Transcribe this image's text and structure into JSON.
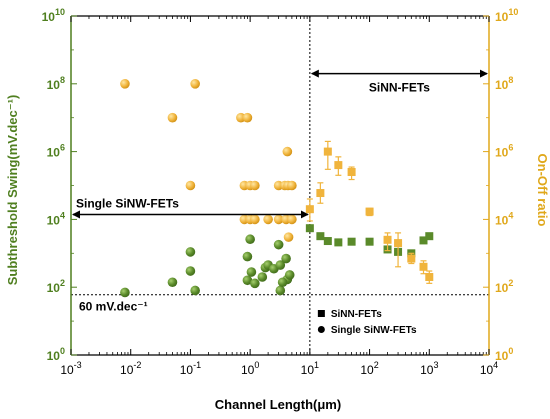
{
  "chart_data": {
    "type": "scatter",
    "xlabel": "Channel Length(μm)",
    "ylabel_left": "Subthreshold Swing(mV.dec⁻¹)",
    "ylabel_right": "On-Off ratio",
    "xscale": "log",
    "yscale": "log",
    "xlim": [
      0.001,
      10000
    ],
    "ylim": [
      1,
      10000000000
    ],
    "x_ticks": [
      {
        "value": 0.001,
        "base": "10",
        "exp": "-3"
      },
      {
        "value": 0.01,
        "base": "10",
        "exp": "-2"
      },
      {
        "value": 0.1,
        "base": "10",
        "exp": "-1"
      },
      {
        "value": 1,
        "base": "10",
        "exp": "0"
      },
      {
        "value": 10,
        "base": "10",
        "exp": "1"
      },
      {
        "value": 100,
        "base": "10",
        "exp": "2"
      },
      {
        "value": 1000,
        "base": "10",
        "exp": "3"
      },
      {
        "value": 10000,
        "base": "10",
        "exp": "4"
      }
    ],
    "y_ticks": [
      {
        "value": 1,
        "base": "10",
        "exp": "0"
      },
      {
        "value": 100,
        "base": "10",
        "exp": "2"
      },
      {
        "value": 10000,
        "base": "10",
        "exp": "4"
      },
      {
        "value": 1000000,
        "base": "10",
        "exp": "6"
      },
      {
        "value": 100000000,
        "base": "10",
        "exp": "8"
      },
      {
        "value": 10000000000,
        "base": "10",
        "exp": "10"
      }
    ],
    "colors": {
      "left_axis": "#4f7f1f",
      "right_axis": "#e0a81b",
      "green_marker": "#5a8a2a",
      "orange_marker": "#f0b43c"
    },
    "series": [
      {
        "axis": "left",
        "marker": "circle",
        "color": "#5a8a2a",
        "points": [
          [
            0.008,
            70
          ],
          [
            0.05,
            140
          ],
          [
            0.12,
            80
          ],
          [
            0.1,
            1100
          ],
          [
            0.1,
            300
          ],
          [
            0.9,
            800
          ],
          [
            1.0,
            2600
          ],
          [
            1.05,
            280
          ],
          [
            0.9,
            160
          ],
          [
            1.2,
            130
          ],
          [
            1.6,
            200
          ],
          [
            1.8,
            380
          ],
          [
            2.0,
            450
          ],
          [
            2.5,
            350
          ],
          [
            3.0,
            1800
          ],
          [
            3.2,
            80
          ],
          [
            3.2,
            450
          ],
          [
            4.0,
            700
          ],
          [
            4.2,
            170
          ],
          [
            4.6,
            230
          ],
          [
            3.5,
            140
          ]
        ]
      },
      {
        "axis": "right",
        "marker": "circle",
        "color": "#f0b43c",
        "points": [
          [
            0.008,
            100000000
          ],
          [
            0.05,
            10000000
          ],
          [
            0.12,
            100000000
          ],
          [
            0.1,
            100000
          ],
          [
            0.7,
            10000000
          ],
          [
            0.9,
            10000000
          ],
          [
            0.8,
            100000
          ],
          [
            1.0,
            100000
          ],
          [
            1.2,
            100000
          ],
          [
            0.8,
            10000
          ],
          [
            1.0,
            10000
          ],
          [
            1.2,
            10000
          ],
          [
            2.0,
            10000
          ],
          [
            3.0,
            10000
          ],
          [
            4.0,
            10000
          ],
          [
            5.0,
            10000
          ],
          [
            3.0,
            100000
          ],
          [
            3.8,
            100000
          ],
          [
            4.3,
            100000
          ],
          [
            5.0,
            100000
          ],
          [
            4.2,
            1000000
          ],
          [
            4.4,
            3000
          ]
        ]
      },
      {
        "axis": "left",
        "marker": "square",
        "color": "#5a8a2a",
        "points": [
          [
            10,
            5500
          ],
          [
            15,
            3200
          ],
          [
            20,
            2300
          ],
          [
            30,
            2100
          ],
          [
            50,
            2200
          ],
          [
            100,
            2200
          ],
          [
            200,
            1300
          ],
          [
            300,
            1100
          ],
          [
            500,
            1000
          ],
          [
            800,
            2400
          ],
          [
            1000,
            3200
          ]
        ]
      },
      {
        "axis": "right",
        "marker": "square",
        "color": "#f0b43c",
        "errors": true,
        "points": [
          {
            "x": 10,
            "y": 20000,
            "lo": 9000,
            "hi": 40000
          },
          {
            "x": 15,
            "y": 60000,
            "lo": 30000,
            "hi": 120000
          },
          {
            "x": 20,
            "y": 1000000,
            "lo": 300000,
            "hi": 2000000
          },
          {
            "x": 30,
            "y": 400000,
            "lo": 200000,
            "hi": 700000
          },
          {
            "x": 50,
            "y": 250000,
            "lo": 150000,
            "hi": 350000
          },
          {
            "x": 100,
            "y": 17000,
            "lo": 13000,
            "hi": 21000
          },
          {
            "x": 200,
            "y": 2500,
            "lo": 1200,
            "hi": 4000
          },
          {
            "x": 300,
            "y": 2000,
            "lo": 400,
            "hi": 4000
          },
          {
            "x": 500,
            "y": 700,
            "lo": 500,
            "hi": 1000
          },
          {
            "x": 800,
            "y": 400,
            "lo": 250,
            "hi": 600
          },
          {
            "x": 1000,
            "y": 200,
            "lo": 130,
            "hi": 300
          }
        ]
      }
    ],
    "reference_lines": {
      "vertical_x": 10,
      "horizontal_y": 60
    },
    "annotations": {
      "sinn_label": "SiNN-FETs",
      "sinn_arrow_from_x": 10,
      "sinn_arrow_to_x": 10000,
      "sinn_arrow_y": 200000000,
      "single_label": "Single SiNW-FETs",
      "single_arrow_from_x": 0.001,
      "single_arrow_to_x": 10,
      "single_arrow_y": 14000,
      "ss_label": "60 mV.dec⁻¹"
    },
    "legend": {
      "placement": "bottom-right",
      "entries": [
        {
          "label": "SiNN-FETs",
          "marker": "square"
        },
        {
          "label": "Single SiNW-FETs",
          "marker": "circle"
        }
      ]
    }
  }
}
